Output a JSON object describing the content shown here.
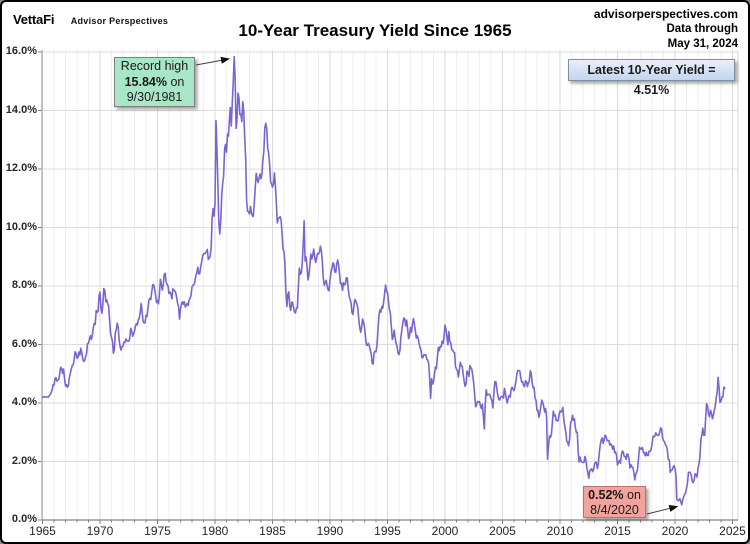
{
  "header": {
    "brand": "VettaFi",
    "brand_sub": "Advisor Perspectives",
    "site": "advisorperspectives.com",
    "data_through_label": "Data through",
    "data_through_date": "May 31, 2024"
  },
  "title": "10-Year Treasury Yield Since 1965",
  "annotations": {
    "record_high": {
      "line1": "Record high",
      "value": "15.84%",
      "value_suffix": " on",
      "date": "9/30/1981",
      "fill": "#A7E7C8",
      "border": "#7F7F7F",
      "anchor_t": 1981.74,
      "anchor_v": 15.84
    },
    "latest": {
      "text": "Latest 10-Year Yield = 4.51%",
      "fill": "#C3D5EE",
      "border": "#7C8FA8"
    },
    "record_low": {
      "value": "0.52%",
      "value_suffix": " on",
      "date": "8/4/2020",
      "fill": "#F2A49C",
      "border": "#B5736B",
      "anchor_t": 2020.59,
      "anchor_v": 0.52
    }
  },
  "chart_data": {
    "type": "line",
    "title": "10-Year Treasury Yield Since 1965",
    "series_name": "10-Year Treasury Yield",
    "line_color": "#7A64D2",
    "x_start_year": 1965,
    "frequency": "monthly",
    "x_ticks": [
      1965,
      1970,
      1975,
      1980,
      1985,
      1990,
      1995,
      2000,
      2005,
      2010,
      2015,
      2020,
      2025
    ],
    "y_tick_labels": [
      "0.0%",
      "2.0%",
      "4.0%",
      "6.0%",
      "8.0%",
      "10.0%",
      "12.0%",
      "14.0%",
      "16.0%"
    ],
    "ylim": [
      0,
      16
    ],
    "xlim": [
      1964.9,
      2025.5
    ],
    "grid": true,
    "legend": "none",
    "values": [
      4.19,
      4.21,
      4.21,
      4.2,
      4.21,
      4.21,
      4.2,
      4.25,
      4.29,
      4.35,
      4.45,
      4.62,
      4.61,
      4.83,
      4.87,
      4.75,
      4.78,
      4.81,
      5.02,
      5.22,
      5.18,
      5.01,
      5.16,
      4.84,
      4.58,
      4.63,
      4.54,
      4.59,
      4.85,
      5.02,
      5.16,
      5.28,
      5.3,
      5.48,
      5.75,
      5.7,
      5.53,
      5.56,
      5.74,
      5.64,
      5.87,
      5.72,
      5.5,
      5.42,
      5.46,
      5.58,
      5.7,
      6.03,
      6.04,
      6.19,
      6.3,
      6.17,
      6.32,
      6.57,
      6.72,
      6.69,
      7.16,
      7.1,
      7.14,
      7.65,
      7.79,
      7.24,
      7.07,
      7.39,
      7.91,
      7.84,
      7.46,
      7.53,
      7.39,
      7.33,
      6.84,
      6.39,
      6.24,
      6.11,
      5.7,
      5.83,
      6.39,
      6.52,
      6.73,
      6.58,
      6.14,
      5.93,
      5.81,
      5.93,
      5.95,
      6.08,
      6.07,
      6.19,
      6.13,
      6.11,
      6.11,
      6.21,
      6.55,
      6.48,
      6.28,
      6.36,
      6.46,
      6.64,
      6.71,
      6.67,
      6.85,
      6.9,
      7.13,
      7.4,
      7.09,
      6.79,
      6.73,
      6.74,
      6.99,
      6.96,
      7.21,
      7.51,
      7.58,
      7.54,
      7.81,
      8.04,
      8.04,
      7.9,
      7.68,
      7.43,
      7.5,
      7.39,
      7.73,
      8.23,
      8.06,
      7.86,
      8.06,
      8.4,
      8.43,
      8.14,
      8.05,
      8.0,
      7.74,
      7.79,
      7.73,
      7.56,
      7.9,
      7.86,
      7.83,
      7.77,
      7.59,
      7.41,
      7.29,
      6.87,
      7.21,
      7.39,
      7.46,
      7.37,
      7.46,
      7.28,
      7.33,
      7.4,
      7.34,
      7.52,
      7.58,
      7.69,
      7.96,
      8.03,
      8.04,
      8.15,
      8.35,
      8.46,
      8.64,
      8.41,
      8.42,
      8.64,
      8.81,
      9.01,
      9.1,
      9.1,
      9.12,
      9.18,
      9.25,
      8.91,
      8.95,
      9.03,
      9.33,
      10.3,
      10.65,
      10.39,
      10.8,
      13.65,
      12.75,
      11.47,
      10.18,
      9.78,
      10.25,
      11.1,
      11.51,
      11.75,
      12.68,
      12.84,
      12.57,
      13.19,
      13.12,
      13.68,
      14.1,
      13.47,
      14.28,
      14.94,
      15.84,
      15.15,
      13.39,
      13.72,
      14.59,
      14.43,
      13.86,
      13.87,
      13.62,
      14.3,
      13.95,
      13.06,
      12.34,
      10.91,
      10.55,
      10.54,
      10.46,
      10.72,
      10.51,
      10.4,
      10.38,
      10.85,
      11.38,
      11.85,
      11.65,
      11.54,
      11.69,
      11.83,
      11.67,
      11.84,
      12.32,
      12.63,
      13.41,
      13.56,
      13.36,
      12.72,
      12.52,
      12.16,
      11.57,
      11.5,
      11.38,
      11.51,
      11.86,
      11.43,
      10.85,
      10.16,
      10.31,
      10.33,
      10.37,
      10.24,
      9.78,
      9.26,
      9.19,
      8.7,
      7.78,
      7.3,
      7.71,
      7.8,
      7.3,
      7.17,
      7.45,
      7.43,
      7.25,
      7.11,
      7.08,
      7.25,
      7.25,
      8.02,
      8.61,
      8.4,
      8.45,
      8.76,
      9.42,
      10.23,
      8.86,
      8.99,
      8.67,
      8.21,
      8.37,
      8.72,
      9.09,
      8.92,
      9.06,
      9.26,
      8.98,
      8.8,
      8.96,
      9.11,
      9.09,
      9.17,
      9.36,
      9.18,
      8.86,
      8.28,
      8.02,
      8.11,
      8.19,
      8.01,
      7.87,
      7.84,
      8.21,
      8.47,
      8.59,
      8.79,
      8.76,
      8.48,
      8.47,
      8.75,
      8.89,
      8.72,
      8.39,
      8.08,
      8.09,
      7.85,
      8.11,
      8.04,
      8.07,
      8.28,
      8.27,
      7.9,
      7.65,
      7.53,
      7.42,
      7.09,
      7.03,
      7.34,
      7.54,
      7.48,
      7.39,
      7.26,
      6.84,
      6.59,
      6.42,
      6.59,
      6.87,
      6.77,
      6.6,
      6.26,
      5.98,
      5.97,
      6.04,
      5.96,
      5.81,
      5.68,
      5.36,
      5.33,
      5.72,
      5.77,
      5.75,
      5.97,
      6.48,
      6.97,
      7.18,
      7.1,
      7.3,
      7.24,
      7.46,
      7.74,
      8.03,
      7.81,
      7.78,
      7.47,
      7.2,
      7.06,
      6.63,
      6.17,
      6.28,
      6.49,
      6.2,
      6.04,
      5.93,
      5.71,
      5.65,
      5.81,
      6.27,
      6.51,
      6.74,
      6.91,
      6.87,
      6.64,
      6.83,
      6.53,
      6.2,
      6.3,
      6.58,
      6.42,
      6.69,
      6.89,
      6.71,
      6.49,
      6.22,
      6.3,
      6.21,
      6.03,
      5.88,
      5.81,
      5.54,
      5.57,
      5.65,
      5.64,
      5.65,
      5.5,
      5.46,
      5.34,
      4.81,
      4.16,
      4.83,
      4.65,
      4.72,
      5.0,
      5.23,
      5.18,
      5.54,
      5.9,
      5.79,
      5.94,
      5.92,
      6.11,
      6.03,
      6.28,
      6.66,
      6.52,
      6.26,
      5.99,
      6.44,
      6.1,
      6.05,
      5.83,
      5.8,
      5.74,
      5.72,
      5.24,
      5.16,
      5.1,
      4.89,
      5.14,
      5.39,
      5.28,
      5.24,
      4.97,
      4.73,
      4.57,
      4.65,
      5.09,
      5.04,
      4.91,
      5.28,
      5.21,
      5.16,
      4.93,
      4.65,
      4.26,
      3.87,
      3.94,
      4.05,
      4.03,
      4.05,
      3.9,
      3.81,
      3.96,
      3.57,
      3.11,
      3.98,
      4.45,
      4.27,
      4.29,
      4.3,
      4.27,
      4.15,
      4.08,
      3.83,
      4.35,
      4.72,
      4.73,
      4.5,
      4.28,
      4.13,
      4.1,
      4.19,
      4.23,
      4.22,
      4.17,
      4.5,
      4.34,
      4.14,
      4.0,
      4.18,
      4.26,
      4.2,
      4.46,
      4.54,
      4.47,
      4.42,
      4.57,
      4.72,
      4.99,
      5.11,
      5.11,
      5.09,
      4.88,
      4.72,
      4.73,
      4.6,
      4.56,
      4.76,
      4.72,
      4.56,
      4.69,
      4.75,
      5.1,
      5.0,
      4.67,
      4.52,
      4.53,
      4.15,
      4.1,
      3.74,
      3.74,
      3.51,
      3.68,
      3.88,
      4.1,
      4.01,
      3.89,
      3.69,
      3.81,
      3.53,
      2.08,
      2.52,
      2.87,
      2.82,
      2.93,
      3.29,
      3.72,
      3.56,
      3.59,
      3.4,
      3.39,
      3.4,
      3.59,
      3.73,
      3.69,
      3.73,
      3.85,
      3.42,
      3.2,
      3.01,
      2.7,
      2.65,
      2.54,
      2.76,
      3.29,
      3.39,
      3.58,
      3.41,
      3.46,
      3.17,
      3.0,
      3.0,
      2.3,
      1.98,
      2.15,
      2.01,
      1.98,
      1.97,
      1.97,
      2.17,
      2.05,
      1.8,
      1.62,
      1.43,
      1.68,
      1.72,
      1.75,
      1.65,
      1.72,
      1.91,
      1.98,
      1.96,
      1.76,
      1.93,
      2.3,
      2.58,
      2.74,
      2.81,
      2.62,
      2.72,
      2.9,
      2.86,
      2.71,
      2.72,
      2.71,
      2.56,
      2.6,
      2.54,
      2.42,
      2.53,
      2.3,
      2.33,
      2.21,
      1.88,
      1.98,
      2.04,
      1.94,
      2.2,
      2.36,
      2.32,
      2.17,
      2.17,
      2.07,
      2.26,
      2.24,
      2.09,
      1.78,
      1.89,
      1.81,
      1.81,
      1.64,
      1.37,
      1.56,
      1.63,
      1.76,
      2.14,
      2.49,
      2.43,
      2.42,
      2.48,
      2.3,
      2.3,
      2.19,
      2.32,
      2.21,
      2.2,
      2.36,
      2.35,
      2.4,
      2.58,
      2.86,
      2.84,
      2.87,
      2.98,
      2.91,
      2.89,
      2.89,
      3.0,
      3.15,
      3.12,
      2.83,
      2.71,
      2.68,
      2.57,
      2.53,
      2.4,
      2.07,
      2.06,
      1.63,
      1.7,
      1.71,
      1.81,
      1.86,
      1.76,
      1.5,
      0.7,
      0.66,
      0.67,
      0.73,
      0.62,
      0.52,
      0.68,
      0.79,
      0.87,
      0.93,
      1.08,
      1.26,
      1.61,
      1.64,
      1.62,
      1.52,
      1.32,
      1.28,
      1.37,
      1.58,
      1.56,
      1.47,
      1.76,
      1.93,
      2.13,
      2.75,
      2.9,
      3.14,
      2.9,
      2.9,
      3.52,
      3.98,
      3.89,
      3.62,
      3.53,
      3.75,
      3.66,
      3.46,
      3.57,
      3.75,
      3.9,
      4.17,
      4.38,
      4.88,
      4.5,
      4.02,
      4.06,
      4.21,
      4.21,
      4.54,
      4.51
    ]
  }
}
